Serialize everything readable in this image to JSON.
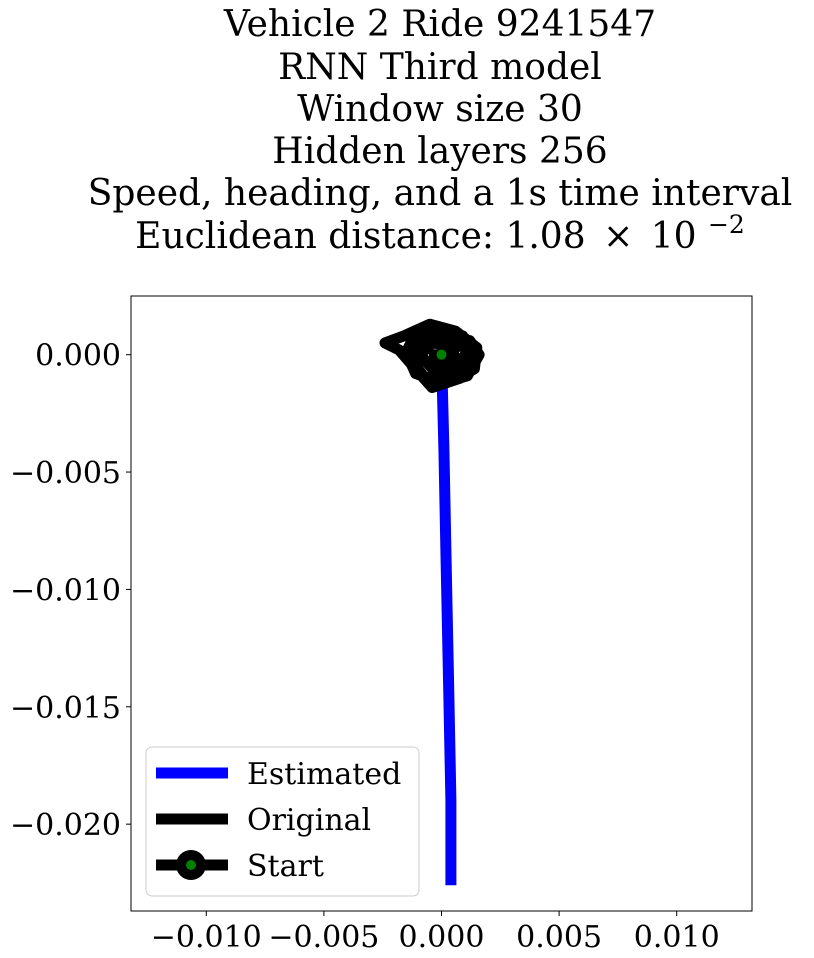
{
  "chart_data": {
    "type": "line",
    "title_lines": [
      "Vehicle 2 Ride 9241547",
      "RNN Third model",
      "Window size 30",
      "Hidden layers 256",
      "Speed, heading, and a 1s time interval"
    ],
    "title_last_line": {
      "prefix": "Euclidean distance: 1.08",
      "times": "×",
      "base": "10",
      "exponent": "−2"
    },
    "xlabel": "",
    "ylabel": "",
    "xlim": [
      -0.0132,
      0.0132
    ],
    "ylim": [
      -0.0237,
      0.0025
    ],
    "xticks": [
      -0.01,
      -0.005,
      0.0,
      0.005,
      0.01
    ],
    "xtick_labels": [
      "−0.010",
      "−0.005",
      "0.000",
      "0.005",
      "0.010"
    ],
    "yticks": [
      0.0,
      -0.005,
      -0.01,
      -0.015,
      -0.02
    ],
    "ytick_labels": [
      "0.000",
      "−0.005",
      "−0.010",
      "−0.015",
      "−0.020"
    ],
    "grid": false,
    "legend_position": "lower-left",
    "series": [
      {
        "name": "Estimated",
        "color": "#0000ff",
        "points": [
          [
            0.0,
            0.0
          ],
          [
            0.0001,
            -0.004
          ],
          [
            0.0002,
            -0.009
          ],
          [
            0.0003,
            -0.014
          ],
          [
            0.0004,
            -0.019
          ],
          [
            0.0004,
            -0.0226
          ]
        ]
      },
      {
        "name": "Original",
        "color": "#000000",
        "points": [
          [
            0.0,
            0.0
          ],
          [
            0.0012,
            0.0006
          ],
          [
            0.0016,
            0.0
          ],
          [
            0.0011,
            -0.0009
          ],
          [
            0.0,
            -0.0012
          ],
          [
            -0.0011,
            -0.0008
          ],
          [
            -0.0015,
            0.0001
          ],
          [
            -0.0011,
            0.0009
          ],
          [
            -0.0002,
            0.0011
          ],
          [
            0.0009,
            0.0008
          ],
          [
            0.0013,
            -0.0002
          ],
          [
            0.0008,
            -0.001
          ],
          [
            -0.0004,
            -0.0014
          ],
          [
            -0.0012,
            -0.0005
          ],
          [
            -0.0018,
            0.0002
          ],
          [
            -0.0024,
            0.0005
          ],
          [
            -0.0016,
            0.0008
          ],
          [
            -0.0005,
            0.0013
          ],
          [
            0.0006,
            0.001
          ],
          [
            0.0015,
            0.0003
          ],
          [
            0.0014,
            -0.0006
          ],
          [
            0.0005,
            -0.0011
          ],
          [
            -0.0007,
            -0.001
          ],
          [
            -0.0013,
            -0.0002
          ],
          [
            -0.0008,
            0.0007
          ],
          [
            0.0003,
            0.0009
          ],
          [
            0.0011,
            0.0002
          ],
          [
            0.0007,
            -0.0006
          ],
          [
            -0.0003,
            -0.0007
          ],
          [
            -0.0009,
            0.0
          ],
          [
            -0.0004,
            0.0005
          ],
          [
            0.0004,
            0.0004
          ],
          [
            0.0006,
            -0.0002
          ],
          [
            0.0,
            -0.0004
          ],
          [
            -0.0003,
            0.0
          ],
          [
            0.0,
            0.0
          ]
        ]
      },
      {
        "name": "Start",
        "marker_color": "#008000",
        "point": [
          0.0,
          0.0
        ]
      }
    ]
  }
}
